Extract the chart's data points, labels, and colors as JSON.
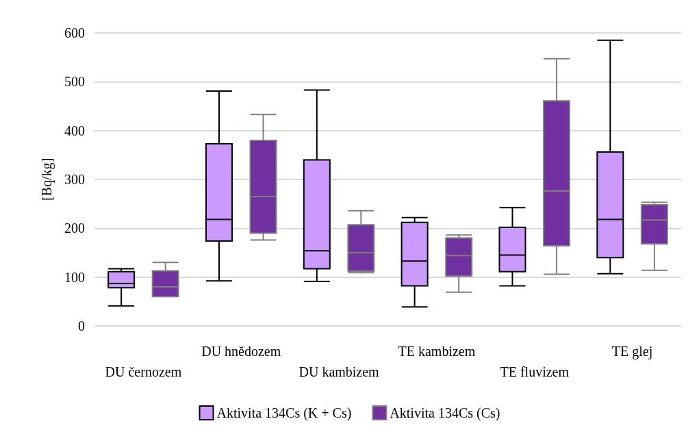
{
  "chart_data": {
    "type": "box",
    "ylabel": "[Bq/kg]",
    "categories": [
      "DU černozem",
      "DU hnědozem",
      "DU kambizem",
      "TE kambizem",
      "TE fluvizem",
      "TE glej"
    ],
    "ylim": [
      0,
      600
    ],
    "yticks": [
      0,
      100,
      200,
      300,
      400,
      500,
      600
    ],
    "grid": "y",
    "legend": "bottom",
    "series": [
      {
        "name": "Aktivita 134Cs (K + Cs)",
        "color": "#cc99ff",
        "boxes": [
          {
            "low": 41,
            "q1": 78,
            "median": 87,
            "q3": 111,
            "high": 117
          },
          {
            "low": 92,
            "q1": 174,
            "median": 218,
            "q3": 373,
            "high": 481
          },
          {
            "low": 91,
            "q1": 117,
            "median": 154,
            "q3": 340,
            "high": 483
          },
          {
            "low": 39,
            "q1": 82,
            "median": 133,
            "q3": 212,
            "high": 222
          },
          {
            "low": 82,
            "q1": 111,
            "median": 145,
            "q3": 202,
            "high": 242
          },
          {
            "low": 107,
            "q1": 140,
            "median": 218,
            "q3": 356,
            "high": 585
          }
        ]
      },
      {
        "name": "Aktivita 134Cs (Cs)",
        "color": "#7030a0",
        "boxes": [
          {
            "low": 60,
            "q1": 60,
            "median": 80,
            "q3": 113,
            "high": 130
          },
          {
            "low": 176,
            "q1": 190,
            "median": 265,
            "q3": 380,
            "high": 433
          },
          {
            "low": 109,
            "q1": 112,
            "median": 150,
            "q3": 207,
            "high": 236
          },
          {
            "low": 69,
            "q1": 102,
            "median": 144,
            "q3": 180,
            "high": 186
          },
          {
            "low": 106,
            "q1": 164,
            "median": 276,
            "q3": 461,
            "high": 547
          },
          {
            "low": 114,
            "q1": 168,
            "median": 217,
            "q3": 248,
            "high": 253
          }
        ]
      }
    ]
  }
}
